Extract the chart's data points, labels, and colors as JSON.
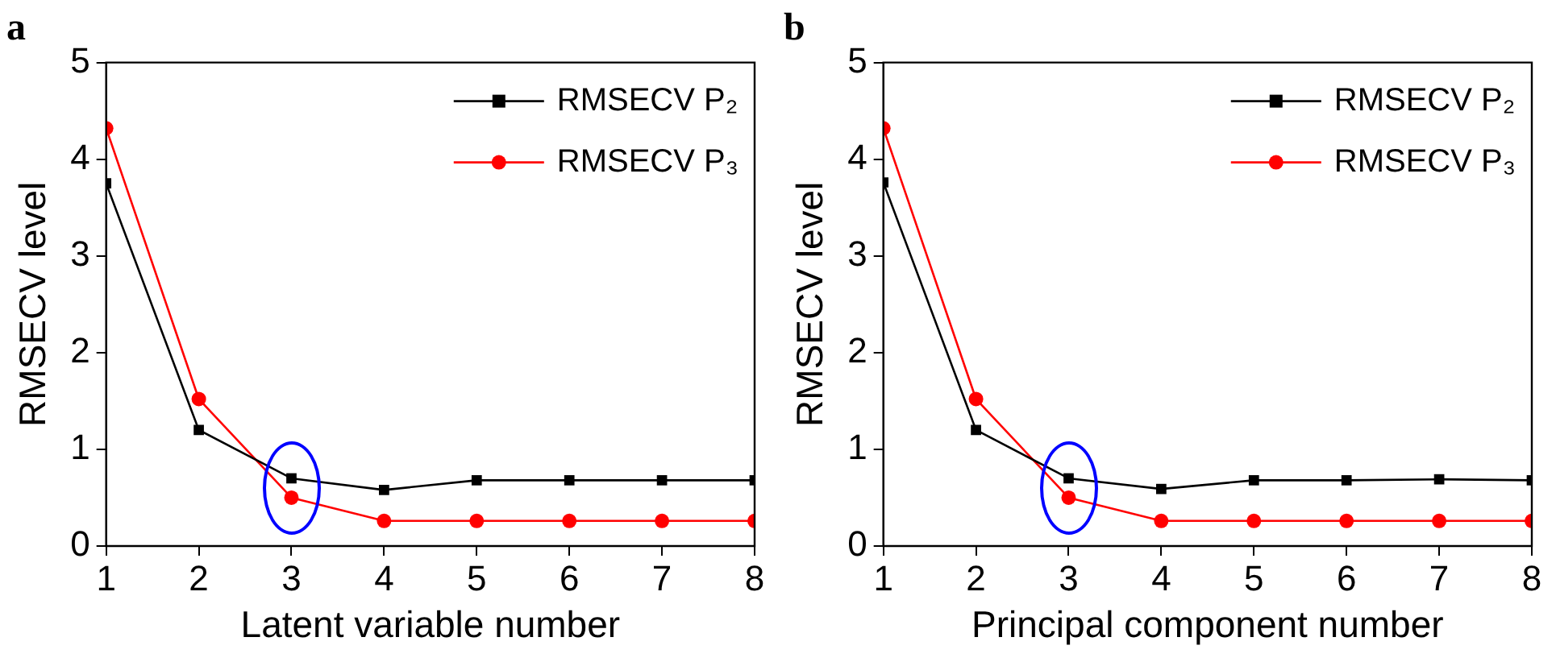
{
  "chart_data": [
    {
      "type": "line",
      "title": "a",
      "xlabel": "Latent variable number",
      "ylabel": "RMSECV level",
      "x": [
        1,
        2,
        3,
        4,
        5,
        6,
        7,
        8
      ],
      "xlim": [
        1,
        8
      ],
      "xticks": [
        1,
        2,
        3,
        4,
        5,
        6,
        7,
        8
      ],
      "ylim": [
        0,
        5
      ],
      "yticks": [
        0,
        1,
        2,
        3,
        4,
        5
      ],
      "grid": false,
      "legend": "top right",
      "line_style": "solid",
      "series": [
        {
          "name": "RMSECV P₂",
          "color": "#000000",
          "marker": "square",
          "values": [
            3.75,
            1.2,
            0.7,
            0.58,
            0.68,
            0.68,
            0.68,
            0.68
          ]
        },
        {
          "name": "RMSECV P₃",
          "color": "#ff0000",
          "marker": "circle",
          "values": [
            4.32,
            1.52,
            0.5,
            0.26,
            0.26,
            0.26,
            0.26,
            0.26
          ]
        }
      ]
    },
    {
      "type": "line",
      "title": "b",
      "xlabel": "Principal component number",
      "ylabel": "RMSECV level",
      "x": [
        1,
        2,
        3,
        4,
        5,
        6,
        7,
        8
      ],
      "xlim": [
        1,
        8
      ],
      "xticks": [
        1,
        2,
        3,
        4,
        5,
        6,
        7,
        8
      ],
      "ylim": [
        0,
        5
      ],
      "yticks": [
        0,
        1,
        2,
        3,
        4,
        5
      ],
      "grid": false,
      "legend": "top right",
      "line_style": "solid",
      "series": [
        {
          "name": "RMSECV P₂",
          "color": "#000000",
          "marker": "square",
          "values": [
            3.76,
            1.2,
            0.7,
            0.59,
            0.68,
            0.68,
            0.69,
            0.68
          ]
        },
        {
          "name": "RMSECV P₃",
          "color": "#ff0000",
          "marker": "circle",
          "values": [
            4.32,
            1.52,
            0.5,
            0.26,
            0.26,
            0.26,
            0.26,
            0.26
          ]
        }
      ]
    }
  ]
}
